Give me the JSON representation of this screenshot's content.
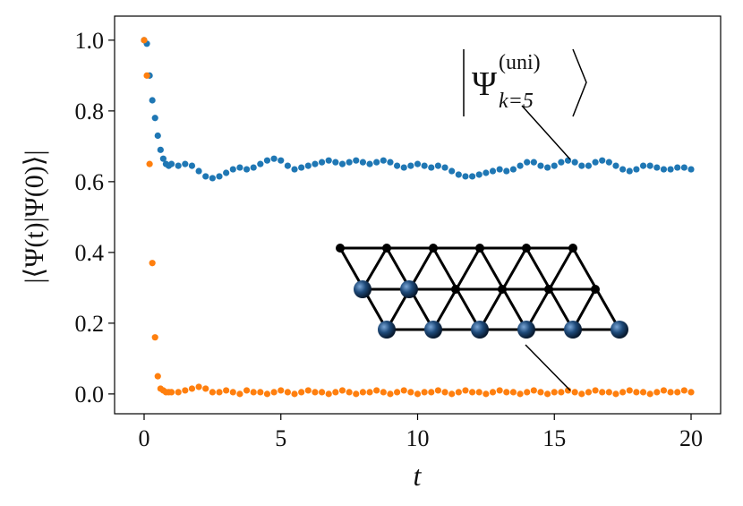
{
  "chart_data": {
    "type": "scatter",
    "xlabel": "t",
    "ylabel": "|⟨Ψ(t)|Ψ(0)⟩|",
    "annotation": {
      "symbol": "Ψ",
      "superscript": "(uni)",
      "subscript": "k=5"
    },
    "xlim": [
      -1.08,
      21.08
    ],
    "ylim": [
      -0.056,
      1.068
    ],
    "xticks": [
      0,
      5,
      10,
      15,
      20
    ],
    "yticks": [
      {
        "value": 0,
        "label": "0.0"
      },
      {
        "value": 0.2,
        "label": "0.2"
      },
      {
        "value": 0.4,
        "label": "0.4"
      },
      {
        "value": 0.6,
        "label": "0.6"
      },
      {
        "value": 0.8,
        "label": "0.8"
      },
      {
        "value": 1,
        "label": "1.0"
      }
    ],
    "grid": false,
    "x": [
      0,
      0.1,
      0.2,
      0.3,
      0.4,
      0.5,
      0.6,
      0.7,
      0.8,
      0.9,
      1.0,
      1.25,
      1.5,
      1.75,
      2.0,
      2.25,
      2.5,
      2.75,
      3.0,
      3.25,
      3.5,
      3.75,
      4.0,
      4.25,
      4.5,
      4.75,
      5.0,
      5.25,
      5.5,
      5.75,
      6.0,
      6.25,
      6.5,
      6.75,
      7.0,
      7.25,
      7.5,
      7.75,
      8.0,
      8.25,
      8.5,
      8.75,
      9.0,
      9.25,
      9.5,
      9.75,
      10.0,
      10.25,
      10.5,
      10.75,
      11.0,
      11.25,
      11.5,
      11.75,
      12.0,
      12.25,
      12.5,
      12.75,
      13.0,
      13.25,
      13.5,
      13.75,
      14.0,
      14.25,
      14.5,
      14.75,
      15.0,
      15.25,
      15.5,
      15.75,
      16.0,
      16.25,
      16.5,
      16.75,
      17.0,
      17.25,
      17.5,
      17.75,
      18.0,
      18.25,
      18.5,
      18.75,
      19.0,
      19.25,
      19.5,
      19.75,
      20.0
    ],
    "series": [
      {
        "color": "#1f77b4",
        "values": [
          1.0,
          0.99,
          0.9,
          0.83,
          0.78,
          0.73,
          0.69,
          0.665,
          0.65,
          0.645,
          0.65,
          0.645,
          0.65,
          0.645,
          0.63,
          0.615,
          0.61,
          0.615,
          0.625,
          0.635,
          0.64,
          0.635,
          0.64,
          0.65,
          0.66,
          0.665,
          0.66,
          0.645,
          0.635,
          0.64,
          0.645,
          0.65,
          0.655,
          0.66,
          0.655,
          0.65,
          0.655,
          0.66,
          0.655,
          0.65,
          0.655,
          0.66,
          0.655,
          0.645,
          0.64,
          0.645,
          0.65,
          0.645,
          0.64,
          0.645,
          0.64,
          0.63,
          0.62,
          0.615,
          0.615,
          0.62,
          0.625,
          0.63,
          0.635,
          0.63,
          0.635,
          0.645,
          0.655,
          0.655,
          0.645,
          0.64,
          0.645,
          0.655,
          0.66,
          0.655,
          0.645,
          0.645,
          0.655,
          0.66,
          0.655,
          0.645,
          0.635,
          0.63,
          0.635,
          0.645,
          0.645,
          0.64,
          0.635,
          0.635,
          0.64,
          0.64,
          0.635
        ]
      },
      {
        "color": "#ff7f0e",
        "values": [
          1.0,
          0.9,
          0.65,
          0.37,
          0.16,
          0.05,
          0.015,
          0.01,
          0.005,
          0.005,
          0.005,
          0.005,
          0.01,
          0.015,
          0.02,
          0.015,
          0.005,
          0.005,
          0.01,
          0.005,
          0.0,
          0.01,
          0.005,
          0.005,
          0.0,
          0.005,
          0.01,
          0.005,
          0.0,
          0.005,
          0.01,
          0.005,
          0.005,
          0.0,
          0.005,
          0.01,
          0.005,
          0.0,
          0.005,
          0.005,
          0.01,
          0.005,
          0.0,
          0.005,
          0.01,
          0.005,
          0.0,
          0.005,
          0.005,
          0.01,
          0.005,
          0.0,
          0.005,
          0.01,
          0.005,
          0.005,
          0.0,
          0.005,
          0.01,
          0.005,
          0.005,
          0.0,
          0.005,
          0.01,
          0.005,
          0.0,
          0.005,
          0.005,
          0.01,
          0.005,
          0.0,
          0.005,
          0.01,
          0.005,
          0.005,
          0.0,
          0.005,
          0.01,
          0.005,
          0.005,
          0.0,
          0.005,
          0.01,
          0.005,
          0.005,
          0.01,
          0.005
        ]
      }
    ]
  }
}
